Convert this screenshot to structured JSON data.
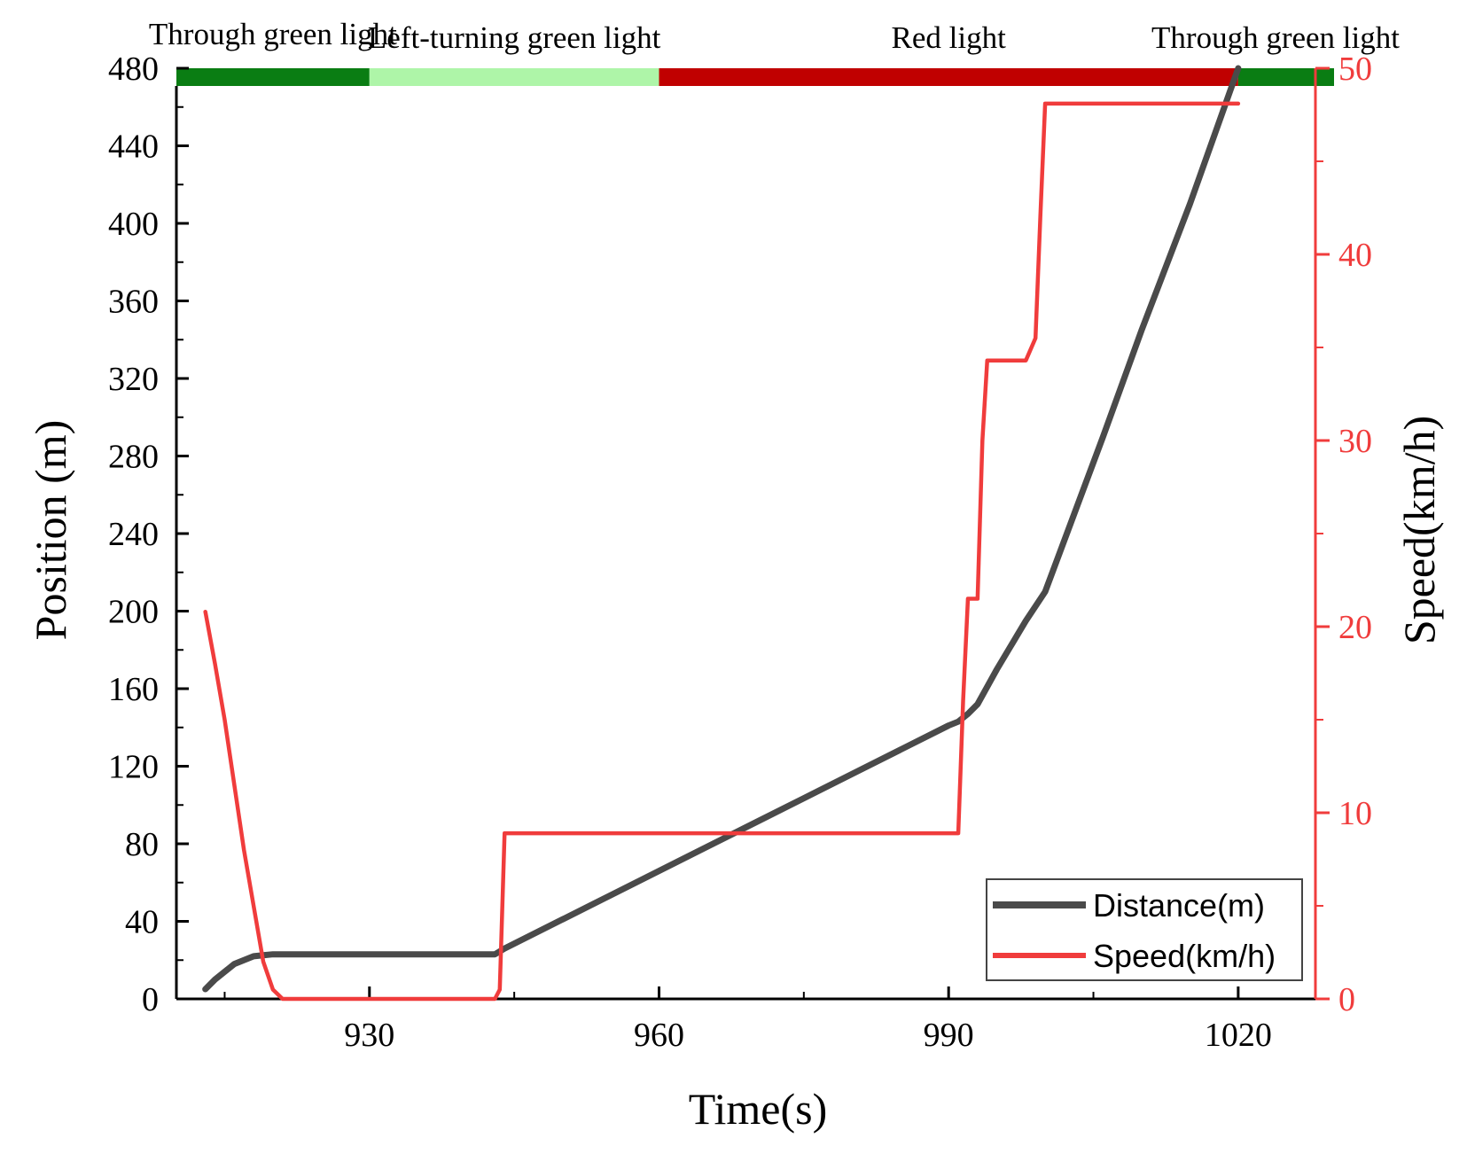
{
  "chart_data": {
    "type": "line",
    "xlabel": "Time(s)",
    "ylabel": "Position (m)",
    "y2label": "Speed(km/h)",
    "xlim": [
      910,
      1028
    ],
    "ylim": [
      0,
      480
    ],
    "y2lim": [
      0,
      50
    ],
    "xticks": [
      930,
      960,
      990,
      1020
    ],
    "yticks": [
      0,
      40,
      80,
      120,
      160,
      200,
      240,
      280,
      320,
      360,
      400,
      440,
      480
    ],
    "y2ticks": [
      0,
      10,
      20,
      30,
      40,
      50
    ],
    "legend_position": "bottom-right",
    "signal_phases": [
      {
        "label": "Through green light",
        "start": 910,
        "end": 930,
        "color": "#0a7d13"
      },
      {
        "label": "Left-turning green light",
        "start": 930,
        "end": 960,
        "color": "#aef5a8"
      },
      {
        "label": "Red light",
        "start": 960,
        "end": 1020,
        "color": "#c00000"
      },
      {
        "label": "Through green light",
        "start": 1020,
        "end": 1030,
        "color": "#0a7d13"
      }
    ],
    "series": [
      {
        "name": "Distance(m)",
        "axis": "left",
        "color": "#4a4a4a",
        "x": [
          913,
          914,
          915,
          916,
          917,
          918,
          919,
          920,
          922,
          925,
          930,
          935,
          940,
          943,
          944,
          950,
          955,
          960,
          965,
          970,
          975,
          980,
          985,
          990,
          991,
          992,
          993,
          995,
          998,
          1000,
          1003,
          1006,
          1010,
          1015,
          1020
        ],
        "y": [
          5,
          10,
          14,
          18,
          20,
          22,
          22.5,
          23,
          23,
          23,
          23,
          23,
          23,
          23,
          26,
          41,
          53.5,
          66,
          78.5,
          91,
          103.5,
          116,
          128.5,
          141,
          143,
          147,
          152,
          170,
          195,
          210,
          250,
          290,
          345,
          410,
          480
        ]
      },
      {
        "name": "Speed(km/h)",
        "axis": "right",
        "color": "#f03c3c",
        "x": [
          913,
          914,
          915,
          916,
          917,
          918,
          919,
          920,
          921,
          922,
          943,
          943.5,
          944,
          991,
          991.5,
          992,
          993,
          993.5,
          994,
          998,
          999,
          999.5,
          1000,
          1020
        ],
        "y": [
          20.8,
          18,
          15,
          11.5,
          8,
          5,
          2,
          0.5,
          0,
          0,
          0,
          0.5,
          8.9,
          8.9,
          16,
          21.5,
          21.5,
          30,
          34.3,
          34.3,
          35.5,
          42,
          48.1,
          48.1
        ]
      }
    ]
  }
}
